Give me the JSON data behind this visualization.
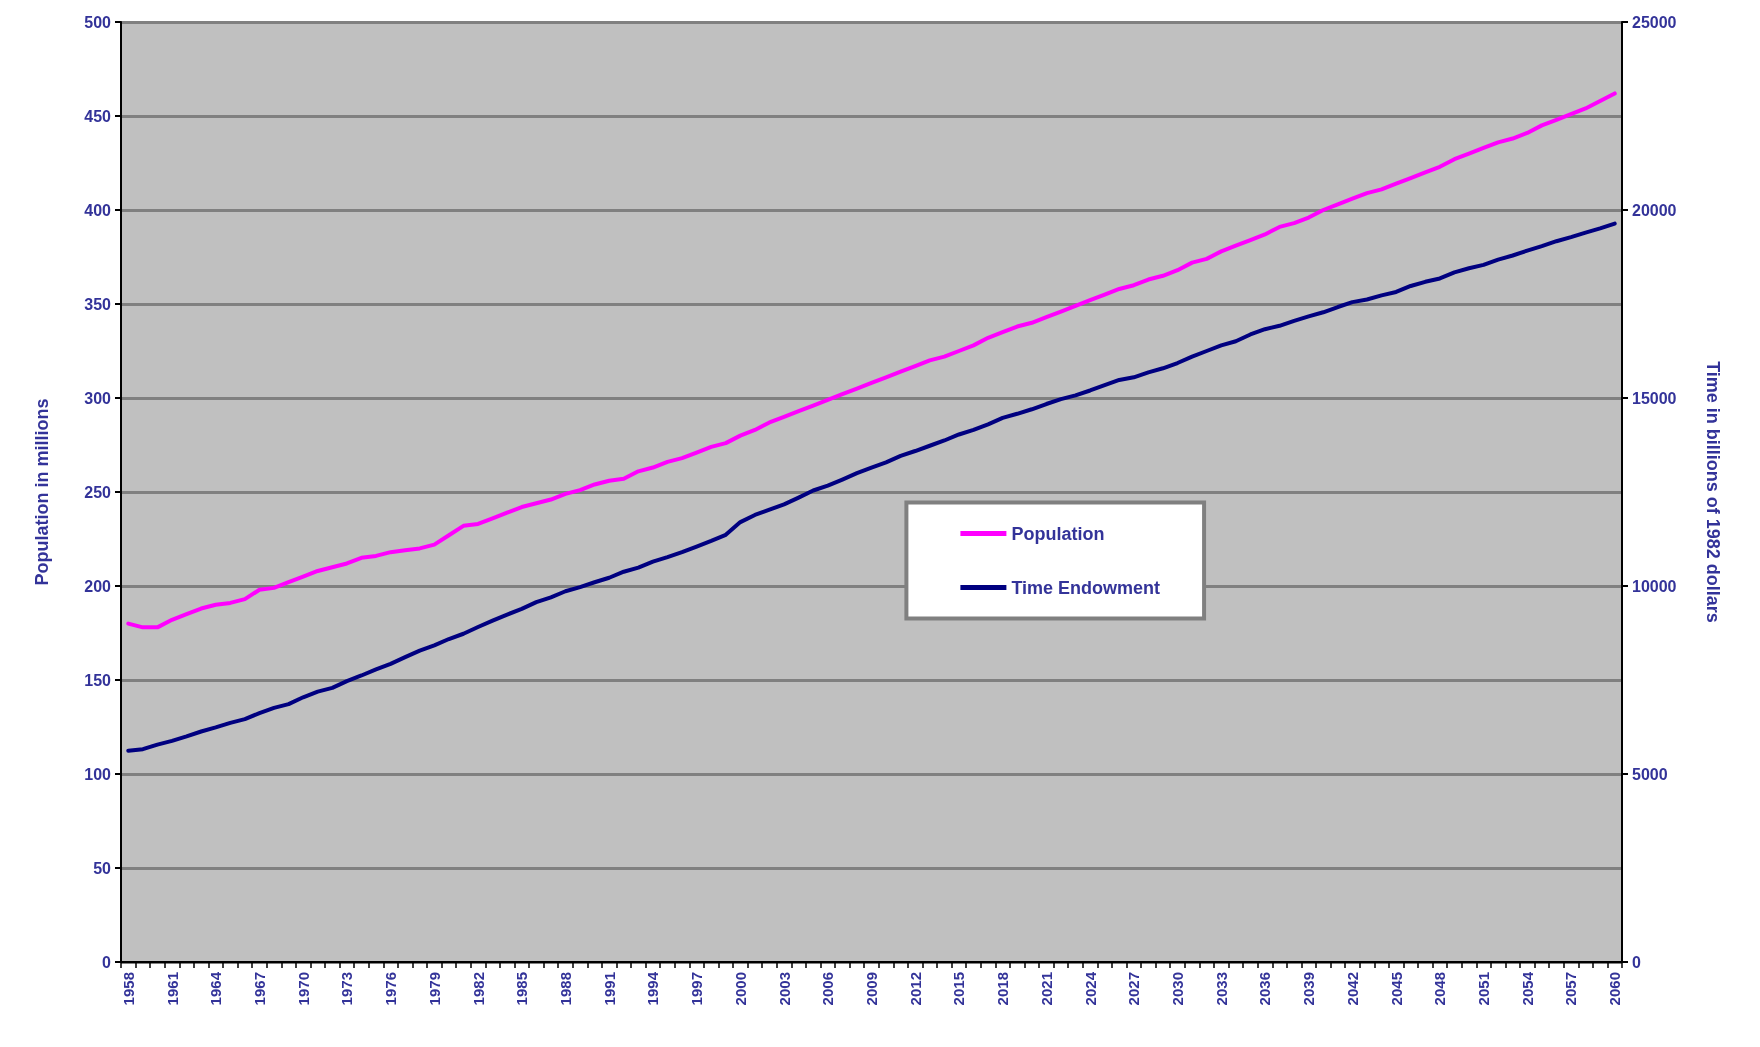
{
  "chart_data": {
    "type": "line",
    "categories": [
      "1958",
      null,
      null,
      "1961",
      null,
      null,
      "1964",
      null,
      null,
      "1967",
      null,
      null,
      "1970",
      null,
      null,
      "1973",
      null,
      null,
      "1976",
      null,
      null,
      "1979",
      null,
      null,
      "1982",
      null,
      null,
      "1985",
      null,
      null,
      "1988",
      null,
      null,
      "1991",
      null,
      null,
      "1994",
      null,
      null,
      "1997",
      null,
      null,
      "2000",
      null,
      null,
      "2003",
      null,
      null,
      "2006",
      null,
      null,
      "2009",
      null,
      null,
      "2012",
      null,
      null,
      "2015",
      null,
      null,
      "2018",
      null,
      null,
      "2021",
      null,
      null,
      "2024",
      null,
      null,
      "2027",
      null,
      null,
      "2030",
      null,
      null,
      "2033",
      null,
      null,
      "2036",
      null,
      null,
      "2039",
      null,
      null,
      "2042",
      null,
      null,
      "2045",
      null,
      null,
      "2048",
      null,
      null,
      "2051",
      null,
      null,
      "2054",
      null,
      null,
      "2057",
      null,
      null,
      "2060"
    ],
    "series": [
      {
        "name": "Population",
        "color": "#ff00ff",
        "values": [
          180,
          178,
          178,
          182,
          185,
          188,
          190,
          191,
          193,
          198,
          199,
          202,
          205,
          208,
          210,
          212,
          215,
          216,
          218,
          219,
          220,
          222,
          227,
          232,
          233,
          236,
          239,
          242,
          244,
          246,
          249,
          251,
          254,
          256,
          257,
          261,
          263,
          266,
          268,
          271,
          274,
          276,
          280,
          283,
          287,
          290,
          293,
          296,
          299,
          302,
          305,
          308,
          311,
          314,
          317,
          320,
          322,
          325,
          328,
          332,
          335,
          338,
          340,
          343,
          346,
          349,
          352,
          355,
          358,
          360,
          363,
          365,
          368,
          372,
          374,
          378,
          381,
          384,
          387,
          391,
          393,
          396,
          400,
          403,
          406,
          409,
          411,
          414,
          417,
          420,
          423,
          427,
          430,
          433,
          436,
          438,
          441,
          445,
          448,
          451,
          454,
          458,
          462
        ]
      },
      {
        "name": "Time Endowment",
        "color": "#000080",
        "axis": "y2",
        "values": [
          5620,
          5660,
          5780,
          5880,
          6000,
          6130,
          6240,
          6360,
          6460,
          6620,
          6760,
          6860,
          7040,
          7190,
          7290,
          7470,
          7620,
          7780,
          7930,
          8110,
          8280,
          8420,
          8590,
          8730,
          8910,
          9080,
          9240,
          9390,
          9570,
          9700,
          9860,
          9970,
          10100,
          10220,
          10380,
          10490,
          10650,
          10770,
          10900,
          11050,
          11200,
          11360,
          11700,
          11890,
          12030,
          12170,
          12350,
          12540,
          12670,
          12830,
          13000,
          13150,
          13290,
          13460,
          13590,
          13730,
          13870,
          14030,
          14150,
          14300,
          14470,
          14580,
          14700,
          14840,
          14970,
          15070,
          15200,
          15340,
          15480,
          15550,
          15680,
          15790,
          15930,
          16100,
          16250,
          16400,
          16510,
          16690,
          16830,
          16920,
          17050,
          17170,
          17280,
          17420,
          17550,
          17620,
          17730,
          17820,
          17980,
          18090,
          18180,
          18340,
          18450,
          18540,
          18680,
          18790,
          18920,
          19040,
          19170,
          19280,
          19400,
          19510,
          19640
        ]
      }
    ],
    "ylabel": "Population in millions",
    "y2label": "Time in billions of 1982 dollars",
    "ylim": [
      0,
      500
    ],
    "yticks": [
      0,
      50,
      100,
      150,
      200,
      250,
      300,
      350,
      400,
      450,
      500
    ],
    "y2lim": [
      0,
      25000
    ],
    "y2ticks": [
      0,
      5000,
      10000,
      15000,
      20000,
      25000
    ],
    "grid": "y",
    "legend": "center",
    "marker": "none",
    "line_style": "solid"
  }
}
